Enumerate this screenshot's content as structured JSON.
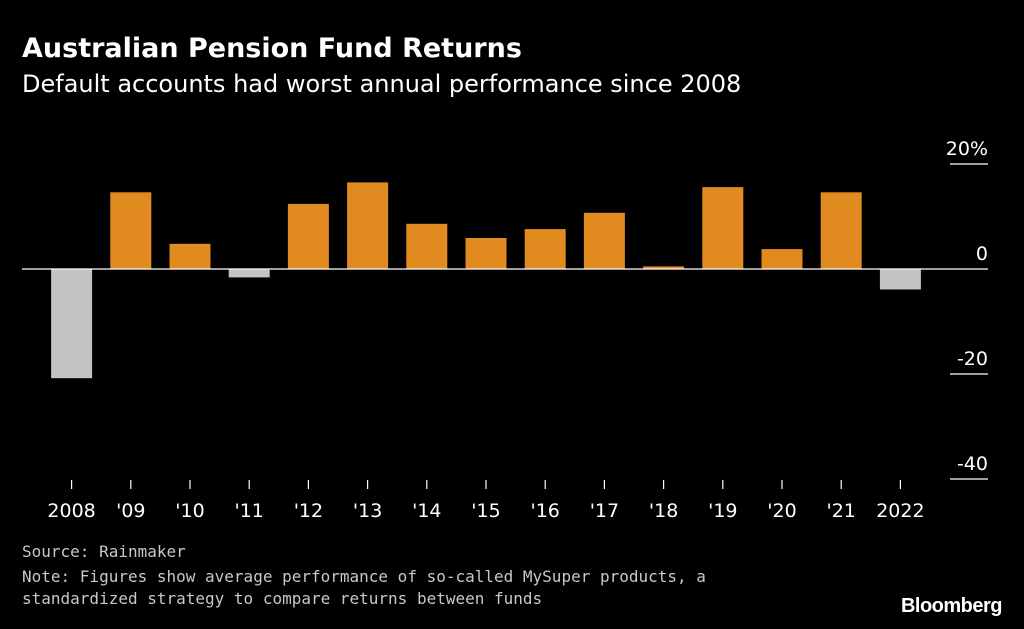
{
  "header": {
    "title": "Australian Pension Fund Returns",
    "subtitle": "Default accounts had worst annual performance since 2008"
  },
  "footer": {
    "source": "Source: Rainmaker",
    "note_line1": "Note: Figures show average performance of so-called MySuper products, a",
    "note_line2": "standardized strategy to compare returns between funds",
    "brand": "Bloomberg"
  },
  "colors": {
    "positive": "#e18a1f",
    "negative": "#c3c3c3",
    "axis": "#ffffff",
    "background": "#000000"
  },
  "chart_data": {
    "type": "bar",
    "title": "Australian Pension Fund Returns",
    "subtitle": "Default accounts had worst annual performance since 2008",
    "xlabel": "",
    "ylabel": "",
    "categories": [
      "2008",
      "'09",
      "'10",
      "'11",
      "'12",
      "'13",
      "'14",
      "'15",
      "'16",
      "'17",
      "'18",
      "'19",
      "'20",
      "'21",
      "2022"
    ],
    "values": [
      -20.8,
      14.6,
      4.8,
      -1.6,
      12.4,
      16.5,
      8.6,
      5.9,
      7.6,
      10.7,
      0.5,
      15.6,
      3.8,
      14.6,
      -3.9
    ],
    "ylim": [
      -40,
      20
    ],
    "yticks": [
      20,
      0,
      -20,
      -40
    ],
    "ytick_labels": [
      "20%",
      "0",
      "-20",
      "-40"
    ],
    "axis_side": "right",
    "grid": false
  }
}
